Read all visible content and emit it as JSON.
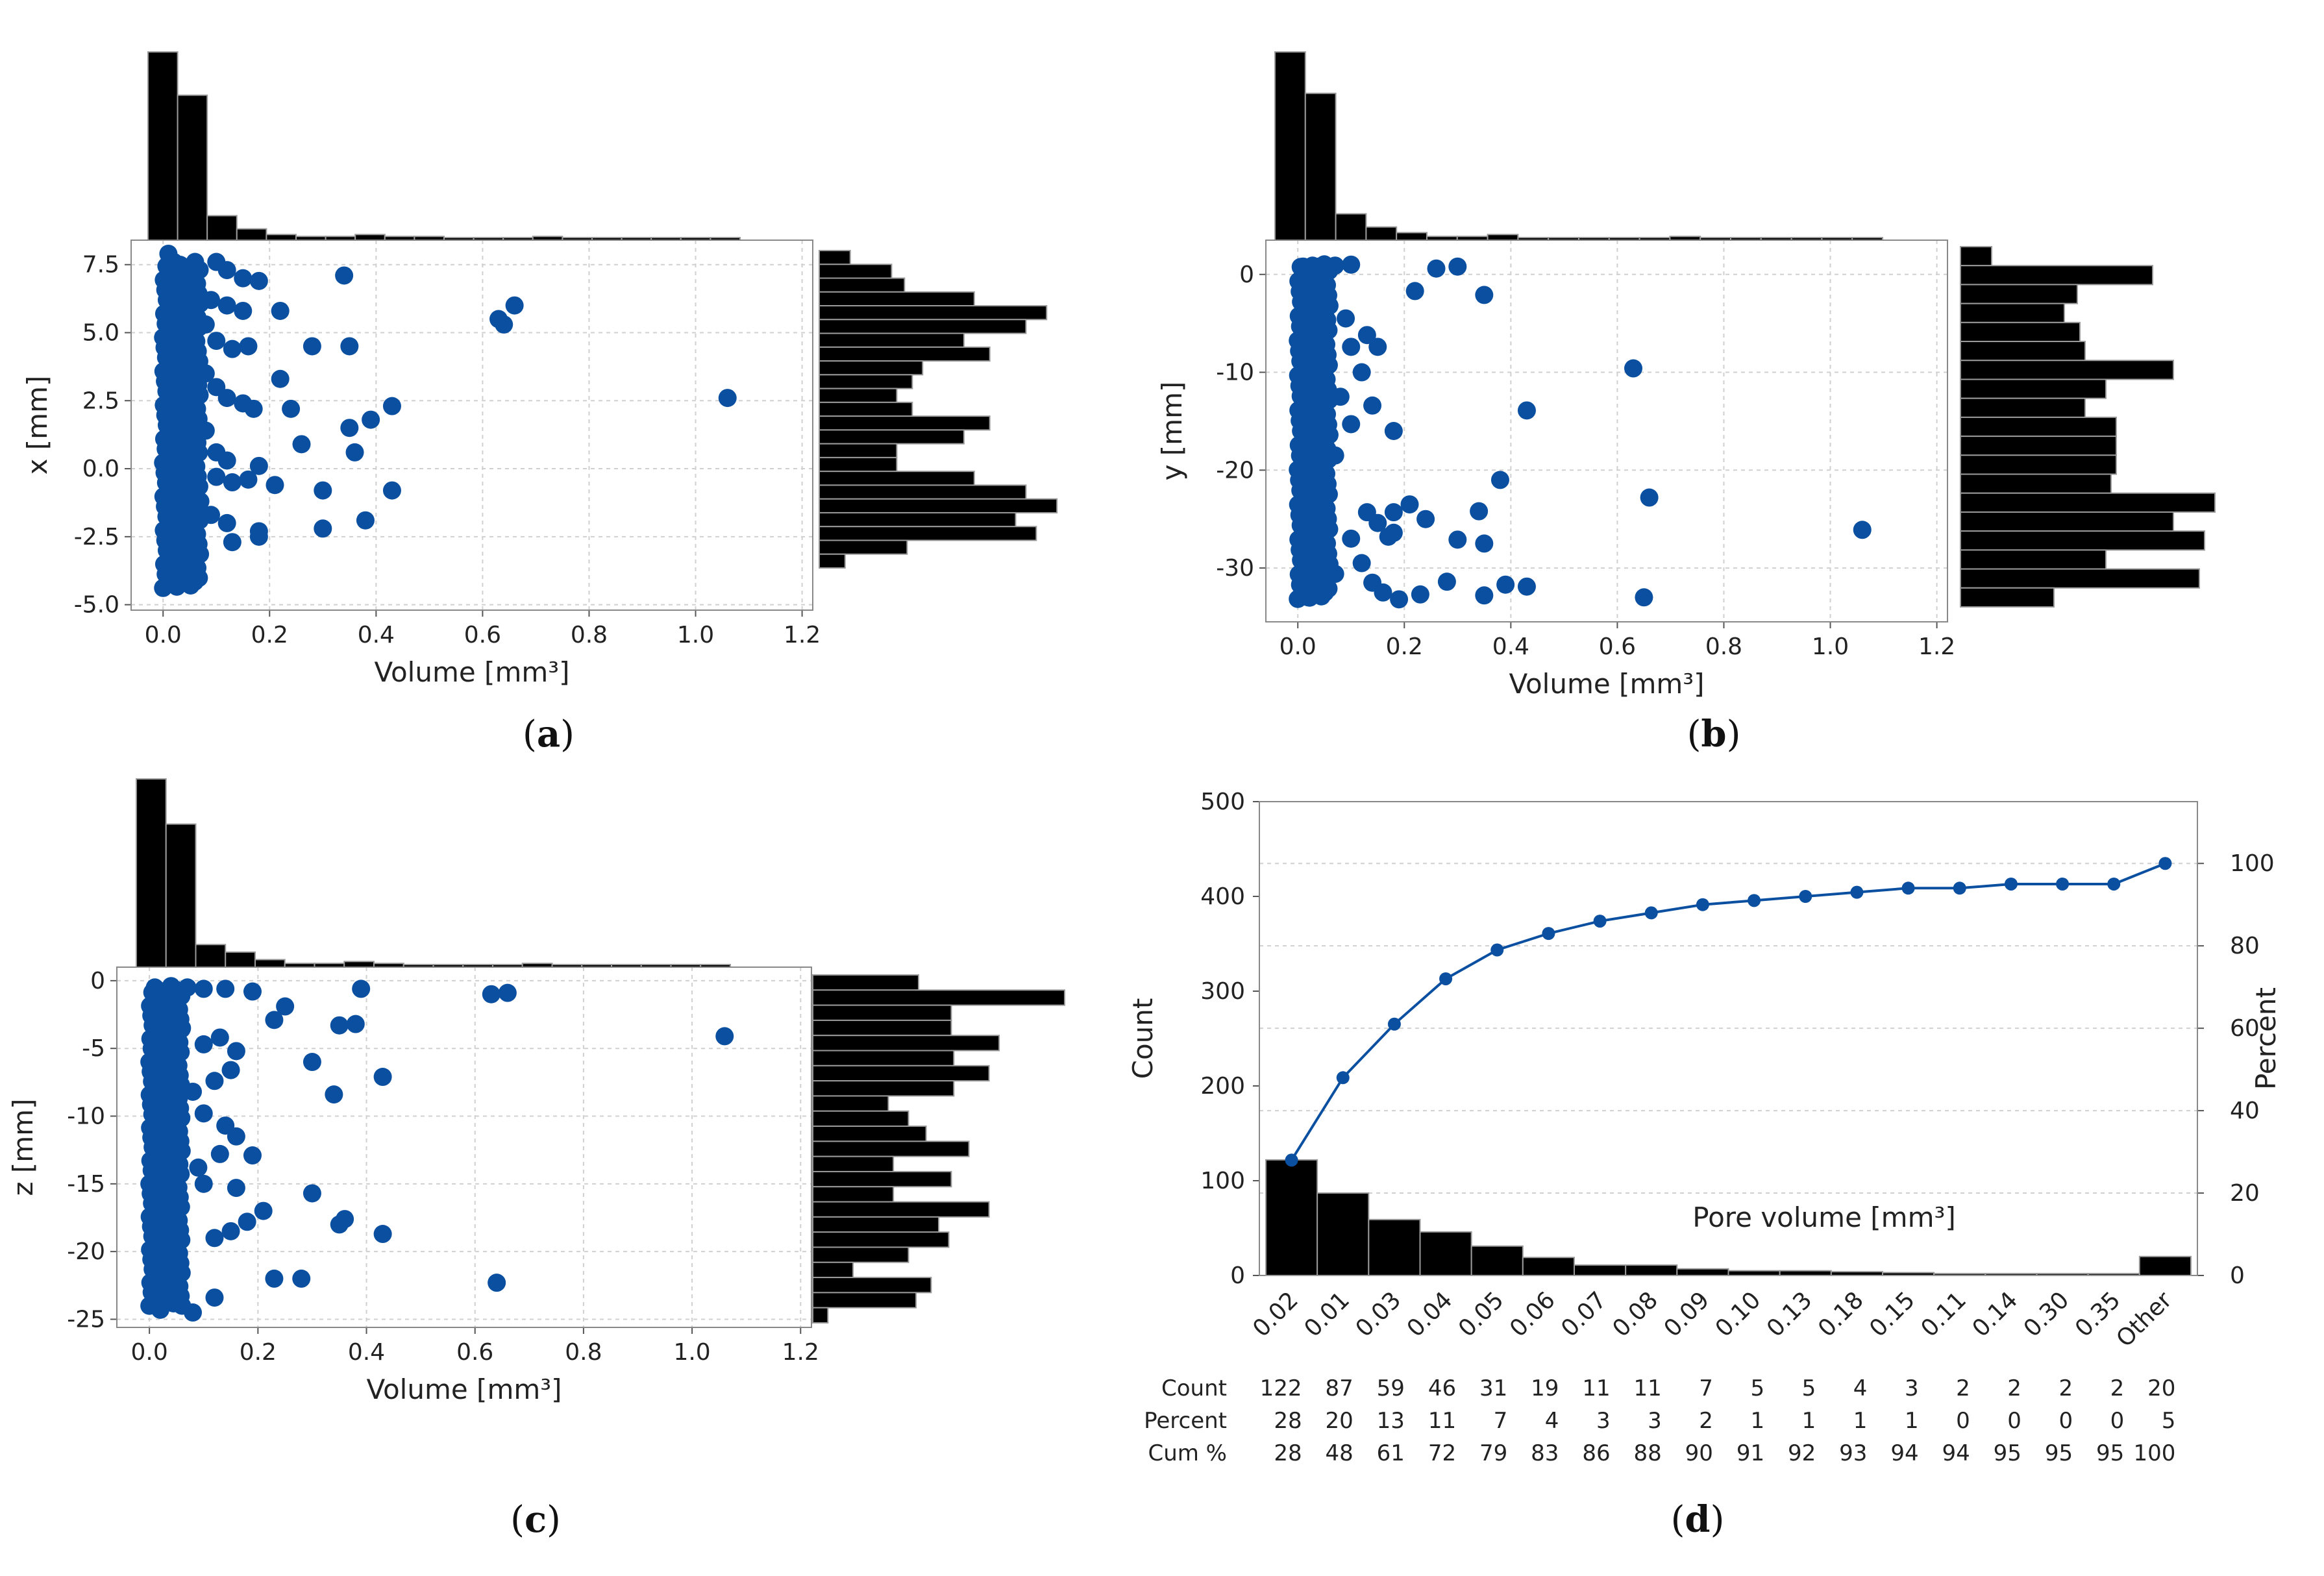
{
  "colors": {
    "point": "#0b4fa0",
    "bar": "#000000",
    "bar_edge": "#9a9a9a",
    "grid": "#d0d0d0",
    "line": "#0b4fa0"
  },
  "chart_data": [
    {
      "id": "a",
      "caption": "a",
      "type": "scatter",
      "xlabel": "Volume [mm³]",
      "ylabel": "x [mm]",
      "xlim": [
        -0.06,
        1.22
      ],
      "ylim": [
        -5.2,
        8.4
      ],
      "xticks": [
        "0.0",
        "0.2",
        "0.4",
        "0.6",
        "0.8",
        "1.0",
        "1.2"
      ],
      "yticks": [
        "-5.0",
        "-2.5",
        "0.0",
        "2.5",
        "5.0",
        "7.5"
      ],
      "points": [
        [
          0.01,
          7.9
        ],
        [
          0.02,
          7.6
        ],
        [
          0.03,
          7.4
        ],
        [
          0.06,
          7.6
        ],
        [
          0.1,
          7.6
        ],
        [
          0.12,
          7.3
        ],
        [
          0.15,
          7.0
        ],
        [
          0.18,
          6.9
        ],
        [
          0.34,
          7.1
        ],
        [
          0.06,
          6.4
        ],
        [
          0.09,
          6.2
        ],
        [
          0.12,
          6.0
        ],
        [
          0.15,
          5.8
        ],
        [
          0.22,
          5.8
        ],
        [
          0.04,
          5.6
        ],
        [
          0.08,
          5.3
        ],
        [
          0.1,
          4.7
        ],
        [
          0.13,
          4.4
        ],
        [
          0.16,
          4.5
        ],
        [
          0.28,
          4.5
        ],
        [
          0.35,
          4.5
        ],
        [
          0.63,
          5.5
        ],
        [
          0.64,
          5.3
        ],
        [
          0.66,
          6.0
        ],
        [
          0.05,
          4.0
        ],
        [
          0.08,
          3.5
        ],
        [
          0.1,
          3.0
        ],
        [
          0.12,
          2.6
        ],
        [
          0.15,
          2.4
        ],
        [
          0.22,
          3.3
        ],
        [
          0.17,
          2.2
        ],
        [
          0.24,
          2.2
        ],
        [
          0.43,
          2.3
        ],
        [
          0.39,
          1.8
        ],
        [
          0.35,
          1.5
        ],
        [
          0.36,
          0.6
        ],
        [
          0.26,
          0.9
        ],
        [
          1.06,
          2.6
        ],
        [
          0.04,
          1.8
        ],
        [
          0.08,
          1.4
        ],
        [
          0.1,
          0.6
        ],
        [
          0.12,
          0.3
        ],
        [
          0.18,
          0.1
        ],
        [
          0.1,
          -0.3
        ],
        [
          0.13,
          -0.5
        ],
        [
          0.16,
          -0.4
        ],
        [
          0.21,
          -0.6
        ],
        [
          0.3,
          -0.8
        ],
        [
          0.43,
          -0.8
        ],
        [
          0.04,
          -0.8
        ],
        [
          0.07,
          -1.2
        ],
        [
          0.09,
          -1.7
        ],
        [
          0.12,
          -2.0
        ],
        [
          0.18,
          -2.3
        ],
        [
          0.18,
          -2.5
        ],
        [
          0.3,
          -2.2
        ],
        [
          0.38,
          -1.9
        ],
        [
          0.13,
          -2.7
        ],
        [
          0.06,
          -2.6
        ],
        [
          0.03,
          -3.3
        ],
        [
          0.04,
          -3.5
        ],
        [
          0.02,
          -3.0
        ],
        [
          0.02,
          -2.0
        ],
        [
          0.02,
          -1.0
        ],
        [
          0.02,
          0.0
        ],
        [
          0.02,
          1.0
        ],
        [
          0.02,
          2.0
        ],
        [
          0.02,
          3.0
        ],
        [
          0.02,
          4.0
        ],
        [
          0.02,
          5.0
        ],
        [
          0.02,
          6.0
        ],
        [
          0.02,
          7.0
        ],
        [
          0.05,
          -2.2
        ],
        [
          0.05,
          -0.2
        ],
        [
          0.05,
          2.6
        ],
        [
          0.05,
          6.8
        ]
      ],
      "dense_band": [
        0.0,
        0.07
      ],
      "top_hist": [
        1.0,
        0.77,
        0.13,
        0.06,
        0.03,
        0.02,
        0.02,
        0.03,
        0.02,
        0.02,
        0.01,
        0.01,
        0.01,
        0.02,
        0.01,
        0.01,
        0.01,
        0.01,
        0.01,
        0.01
      ],
      "side_hist": [
        0.12,
        0.28,
        0.33,
        0.6,
        0.88,
        0.8,
        0.56,
        0.66,
        0.4,
        0.36,
        0.3,
        0.36,
        0.66,
        0.56,
        0.3,
        0.3,
        0.6,
        0.8,
        0.92,
        0.76,
        0.84,
        0.34,
        0.1
      ]
    },
    {
      "id": "b",
      "caption": "b",
      "type": "scatter",
      "xlabel": "Volume [mm³]",
      "ylabel": "y [mm]",
      "xlim": [
        -0.06,
        1.22
      ],
      "ylim": [
        -35.5,
        3.5
      ],
      "xticks": [
        "0.0",
        "0.2",
        "0.4",
        "0.6",
        "0.8",
        "1.0",
        "1.2"
      ],
      "yticks": [
        "0",
        "-10",
        "-20",
        "-30"
      ],
      "points": [
        [
          0.01,
          0.8
        ],
        [
          0.04,
          0.8
        ],
        [
          0.07,
          0.9
        ],
        [
          0.1,
          1.0
        ],
        [
          0.26,
          0.6
        ],
        [
          0.3,
          0.8
        ],
        [
          0.22,
          -1.7
        ],
        [
          0.35,
          -2.1
        ],
        [
          0.05,
          -3.0
        ],
        [
          0.09,
          -4.5
        ],
        [
          0.13,
          -6.2
        ],
        [
          0.15,
          -7.4
        ],
        [
          0.1,
          -7.4
        ],
        [
          0.12,
          -10.0
        ],
        [
          0.63,
          -9.6
        ],
        [
          0.08,
          -12.5
        ],
        [
          0.1,
          -15.3
        ],
        [
          0.14,
          -13.4
        ],
        [
          0.18,
          -16.0
        ],
        [
          0.43,
          -13.9
        ],
        [
          0.07,
          -18.5
        ],
        [
          0.38,
          -21.0
        ],
        [
          0.66,
          -22.8
        ],
        [
          0.13,
          -24.3
        ],
        [
          0.15,
          -25.4
        ],
        [
          0.18,
          -24.3
        ],
        [
          0.21,
          -23.5
        ],
        [
          0.24,
          -25.0
        ],
        [
          0.17,
          -26.8
        ],
        [
          0.18,
          -26.4
        ],
        [
          0.3,
          -27.1
        ],
        [
          0.35,
          -27.5
        ],
        [
          0.34,
          -24.2
        ],
        [
          0.1,
          -27.0
        ],
        [
          0.12,
          -29.5
        ],
        [
          0.07,
          -30.6
        ],
        [
          0.14,
          -31.5
        ],
        [
          0.16,
          -32.5
        ],
        [
          0.19,
          -33.2
        ],
        [
          0.23,
          -32.7
        ],
        [
          0.28,
          -31.4
        ],
        [
          0.35,
          -32.8
        ],
        [
          0.39,
          -31.7
        ],
        [
          0.43,
          -31.9
        ],
        [
          0.65,
          -33.0
        ],
        [
          1.06,
          -26.1
        ],
        [
          0.02,
          -33.0
        ],
        [
          0.02,
          -30.0
        ],
        [
          0.02,
          -25.0
        ],
        [
          0.02,
          -20.0
        ],
        [
          0.02,
          -15.0
        ],
        [
          0.02,
          -10.0
        ],
        [
          0.02,
          -5.0
        ],
        [
          0.02,
          0.0
        ],
        [
          0.05,
          -28.0
        ],
        [
          0.05,
          -22.0
        ],
        [
          0.05,
          -17.0
        ],
        [
          0.05,
          -9.0
        ]
      ],
      "dense_band": [
        0.0,
        0.06
      ],
      "top_hist": [
        1.0,
        0.78,
        0.14,
        0.07,
        0.04,
        0.02,
        0.02,
        0.03,
        0.01,
        0.01,
        0.01,
        0.01,
        0.01,
        0.02,
        0.01,
        0.01,
        0.01,
        0.01,
        0.01,
        0.01
      ],
      "side_hist": [
        0.12,
        0.74,
        0.45,
        0.4,
        0.46,
        0.48,
        0.82,
        0.56,
        0.48,
        0.6,
        0.6,
        0.6,
        0.58,
        0.98,
        0.82,
        0.94,
        0.56,
        0.92,
        0.36
      ]
    },
    {
      "id": "c",
      "caption": "c",
      "type": "scatter",
      "xlabel": "Volume [mm³]",
      "ylabel": "z [mm]",
      "xlim": [
        -0.06,
        1.22
      ],
      "ylim": [
        -25.6,
        1.0
      ],
      "xticks": [
        "0.0",
        "0.2",
        "0.4",
        "0.6",
        "0.8",
        "1.0",
        "1.2"
      ],
      "yticks": [
        "0",
        "-5",
        "-10",
        "-15",
        "-20",
        "-25"
      ],
      "points": [
        [
          0.01,
          -0.5
        ],
        [
          0.04,
          -0.4
        ],
        [
          0.07,
          -0.5
        ],
        [
          0.1,
          -0.6
        ],
        [
          0.14,
          -0.6
        ],
        [
          0.19,
          -0.8
        ],
        [
          0.25,
          -1.9
        ],
        [
          0.23,
          -2.9
        ],
        [
          0.35,
          -3.3
        ],
        [
          0.38,
          -3.2
        ],
        [
          0.39,
          -0.6
        ],
        [
          0.63,
          -1.0
        ],
        [
          0.66,
          -0.9
        ],
        [
          1.06,
          -4.1
        ],
        [
          0.06,
          -3.5
        ],
        [
          0.1,
          -4.7
        ],
        [
          0.13,
          -4.2
        ],
        [
          0.16,
          -5.2
        ],
        [
          0.15,
          -6.6
        ],
        [
          0.12,
          -7.4
        ],
        [
          0.08,
          -8.2
        ],
        [
          0.1,
          -9.8
        ],
        [
          0.14,
          -10.7
        ],
        [
          0.16,
          -11.5
        ],
        [
          0.13,
          -12.8
        ],
        [
          0.09,
          -13.8
        ],
        [
          0.1,
          -15.0
        ],
        [
          0.16,
          -15.3
        ],
        [
          0.18,
          -17.8
        ],
        [
          0.15,
          -18.5
        ],
        [
          0.12,
          -19.0
        ],
        [
          0.21,
          -17.0
        ],
        [
          0.19,
          -12.9
        ],
        [
          0.3,
          -15.7
        ],
        [
          0.34,
          -8.4
        ],
        [
          0.3,
          -6.0
        ],
        [
          0.43,
          -7.1
        ],
        [
          0.35,
          -18.0
        ],
        [
          0.36,
          -17.6
        ],
        [
          0.43,
          -18.7
        ],
        [
          0.23,
          -22.0
        ],
        [
          0.28,
          -22.0
        ],
        [
          0.64,
          -22.3
        ],
        [
          0.12,
          -23.4
        ],
        [
          0.06,
          -24.0
        ],
        [
          0.08,
          -24.5
        ],
        [
          0.02,
          -24.3
        ],
        [
          0.02,
          -20.0
        ],
        [
          0.02,
          -15.0
        ],
        [
          0.02,
          -10.0
        ],
        [
          0.02,
          -5.0
        ],
        [
          0.05,
          -21.5
        ],
        [
          0.05,
          -16.5
        ],
        [
          0.05,
          -11.0
        ],
        [
          0.05,
          -6.0
        ],
        [
          0.05,
          -1.5
        ]
      ],
      "dense_band": [
        0.0,
        0.06
      ],
      "top_hist": [
        1.0,
        0.76,
        0.12,
        0.08,
        0.04,
        0.02,
        0.02,
        0.03,
        0.02,
        0.01,
        0.01,
        0.01,
        0.01,
        0.02,
        0.01,
        0.01,
        0.01,
        0.01,
        0.01,
        0.01
      ],
      "side_hist": [
        0.42,
        1.0,
        0.55,
        0.55,
        0.74,
        0.56,
        0.7,
        0.56,
        0.3,
        0.38,
        0.45,
        0.62,
        0.32,
        0.55,
        0.32,
        0.7,
        0.5,
        0.54,
        0.38,
        0.16,
        0.47,
        0.41,
        0.06
      ]
    },
    {
      "id": "d",
      "caption": "d",
      "type": "bar+line (pareto)",
      "ylabel": "Count",
      "y2label": "Percent",
      "title_inside": "Pore volume [mm³]",
      "ylim": [
        0,
        500
      ],
      "y2lim": [
        0,
        115
      ],
      "yticks": [
        "0",
        "100",
        "200",
        "300",
        "400",
        "500"
      ],
      "y2ticks": [
        "0",
        "20",
        "40",
        "60",
        "80",
        "100"
      ],
      "categories": [
        "0.02",
        "0.01",
        "0.03",
        "0.04",
        "0.05",
        "0.06",
        "0.07",
        "0.08",
        "0.09",
        "0.10",
        "0.13",
        "0.18",
        "0.15",
        "0.11",
        "0.14",
        "0.30",
        "0.35",
        "Other"
      ],
      "count": [
        122,
        87,
        59,
        46,
        31,
        19,
        11,
        11,
        7,
        5,
        5,
        4,
        3,
        2,
        2,
        2,
        2,
        20
      ],
      "percent": [
        28,
        20,
        13,
        11,
        7,
        4,
        3,
        3,
        2,
        1,
        1,
        1,
        1,
        0,
        0,
        0,
        0,
        5
      ],
      "cum_percent": [
        28,
        48,
        61,
        72,
        79,
        83,
        86,
        88,
        90,
        91,
        92,
        93,
        94,
        94,
        95,
        95,
        95,
        100
      ],
      "table_labels": {
        "count": "Count",
        "percent": "Percent",
        "cum": "Cum %"
      }
    }
  ]
}
